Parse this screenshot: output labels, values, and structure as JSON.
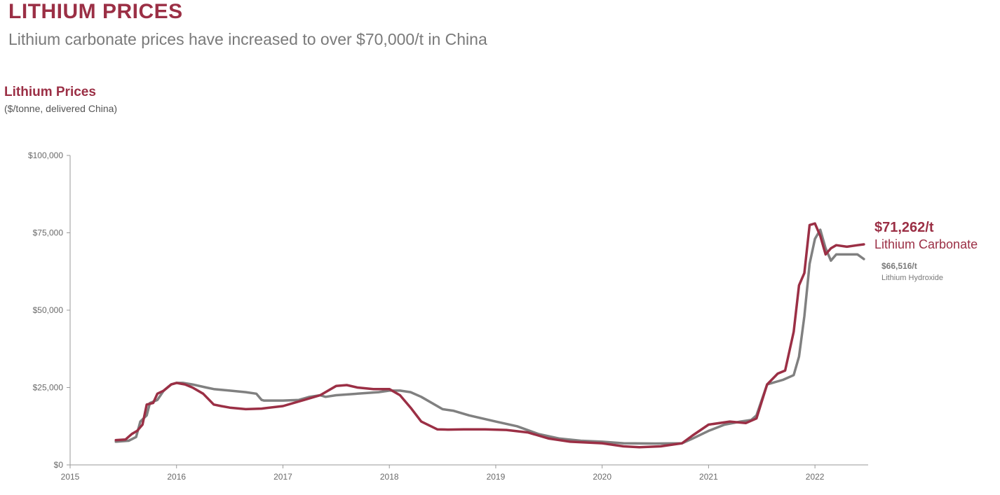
{
  "header": {
    "title": "LITHIUM PRICES",
    "subtitle": "Lithium carbonate prices have increased to over $70,000/t in China"
  },
  "colors": {
    "accent": "#9b2f45",
    "carbonate": "#9b2f45",
    "hydroxide": "#808080",
    "axis": "#9a9a9a"
  },
  "chart_data": {
    "type": "line",
    "title": "Lithium Prices",
    "ylabel": "($/tonne, delivered China)",
    "xlabel": "",
    "xlim": [
      2015,
      2022.5
    ],
    "ylim": [
      0,
      100000
    ],
    "grid": false,
    "x_ticks": [
      2015,
      2016,
      2017,
      2018,
      2019,
      2020,
      2021,
      2022
    ],
    "x_tick_labels": [
      "2015",
      "2016",
      "2017",
      "2018",
      "2019",
      "2020",
      "2021",
      "2022"
    ],
    "y_ticks": [
      0,
      25000,
      50000,
      75000,
      100000
    ],
    "y_tick_labels": [
      "$0",
      "$25,000",
      "$50,000",
      "$75,000",
      "$100,000"
    ],
    "series": [
      {
        "name": "Lithium Hydroxide",
        "key": "hydroxide",
        "x": [
          2015.43,
          2015.55,
          2015.62,
          2015.66,
          2015.72,
          2015.75,
          2015.82,
          2015.88,
          2015.95,
          2016.0,
          2016.06,
          2016.15,
          2016.28,
          2016.35,
          2016.5,
          2016.65,
          2016.75,
          2016.8,
          2016.82,
          2017.0,
          2017.15,
          2017.25,
          2017.35,
          2017.4,
          2017.5,
          2017.7,
          2017.9,
          2018.0,
          2018.1,
          2018.2,
          2018.3,
          2018.5,
          2018.6,
          2018.75,
          2019.0,
          2019.2,
          2019.4,
          2019.6,
          2019.8,
          2020.0,
          2020.2,
          2020.5,
          2020.75,
          2020.85,
          2021.0,
          2021.15,
          2021.3,
          2021.4,
          2021.45,
          2021.55,
          2021.7,
          2021.8,
          2021.85,
          2021.9,
          2021.95,
          2022.0,
          2022.05,
          2022.1,
          2022.15,
          2022.2,
          2022.3,
          2022.4,
          2022.46
        ],
        "values": [
          7500,
          7800,
          9000,
          14000,
          16000,
          20000,
          21000,
          24000,
          26000,
          26500,
          26500,
          26000,
          25000,
          24500,
          24000,
          23500,
          23000,
          21000,
          20800,
          20800,
          21000,
          22000,
          22500,
          22000,
          22500,
          23000,
          23500,
          24000,
          24000,
          23500,
          22000,
          18000,
          17500,
          16000,
          14000,
          12500,
          10000,
          8500,
          7800,
          7500,
          7000,
          6900,
          7000,
          8500,
          11000,
          13000,
          14000,
          14500,
          16000,
          26000,
          27500,
          29000,
          35000,
          48000,
          65000,
          73000,
          76000,
          70000,
          66000,
          68000,
          68000,
          68000,
          66516
        ]
      },
      {
        "name": "Lithium Carbonate",
        "key": "carbonate",
        "x": [
          2015.43,
          2015.52,
          2015.58,
          2015.63,
          2015.68,
          2015.72,
          2015.78,
          2015.82,
          2015.88,
          2015.95,
          2016.0,
          2016.08,
          2016.15,
          2016.25,
          2016.35,
          2016.42,
          2016.5,
          2016.65,
          2016.8,
          2017.0,
          2017.2,
          2017.35,
          2017.5,
          2017.6,
          2017.7,
          2017.85,
          2018.0,
          2018.1,
          2018.2,
          2018.3,
          2018.45,
          2018.55,
          2018.7,
          2018.9,
          2019.1,
          2019.3,
          2019.5,
          2019.7,
          2020.0,
          2020.2,
          2020.35,
          2020.55,
          2020.75,
          2020.85,
          2021.0,
          2021.2,
          2021.35,
          2021.45,
          2021.55,
          2021.65,
          2021.72,
          2021.8,
          2021.85,
          2021.9,
          2021.95,
          2022.0,
          2022.05,
          2022.1,
          2022.15,
          2022.2,
          2022.3,
          2022.4,
          2022.46
        ],
        "values": [
          8000,
          8200,
          10000,
          11000,
          13000,
          19500,
          20000,
          23000,
          24000,
          26000,
          26500,
          26000,
          25000,
          23000,
          19500,
          19000,
          18500,
          18000,
          18200,
          19000,
          21000,
          22500,
          25500,
          25800,
          25000,
          24500,
          24500,
          22500,
          18500,
          14000,
          11500,
          11400,
          11500,
          11500,
          11300,
          10500,
          8500,
          7500,
          7000,
          6000,
          5700,
          6000,
          7000,
          9500,
          13000,
          14000,
          13500,
          15000,
          26000,
          29500,
          30500,
          43000,
          58000,
          62000,
          77500,
          78000,
          74000,
          68000,
          70000,
          71000,
          70500,
          71000,
          71262
        ]
      }
    ],
    "annotations": [
      {
        "series": "carbonate",
        "value_label": "$71,262/t",
        "name_label": "Lithium Carbonate"
      },
      {
        "series": "hydroxide",
        "value_label": "$66,516/t",
        "name_label": "Lithium Hydroxide"
      }
    ],
    "legend": "none"
  }
}
